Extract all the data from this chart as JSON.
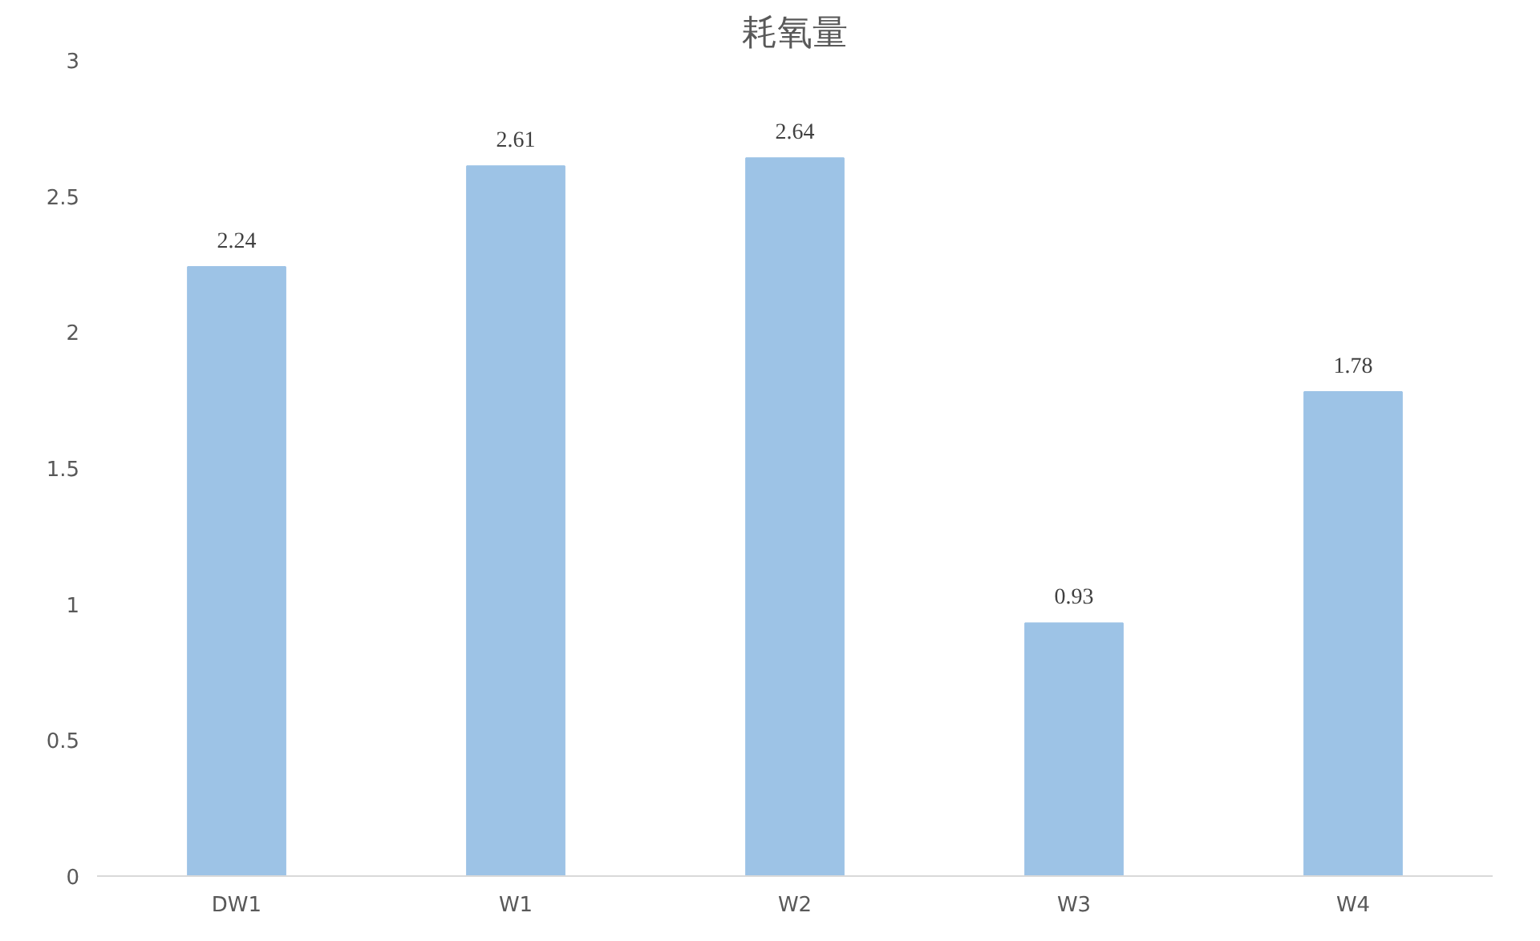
{
  "chart_data": {
    "type": "bar",
    "title": "耗氧量",
    "categories": [
      "DW1",
      "W1",
      "W2",
      "W3",
      "W4"
    ],
    "values": [
      2.24,
      2.61,
      2.64,
      0.93,
      1.78
    ],
    "color": "#9dc3e6",
    "ylim": [
      0,
      3
    ],
    "yticks": [
      0,
      0.5,
      1,
      1.5,
      2,
      2.5,
      3
    ],
    "data_labels": true
  }
}
